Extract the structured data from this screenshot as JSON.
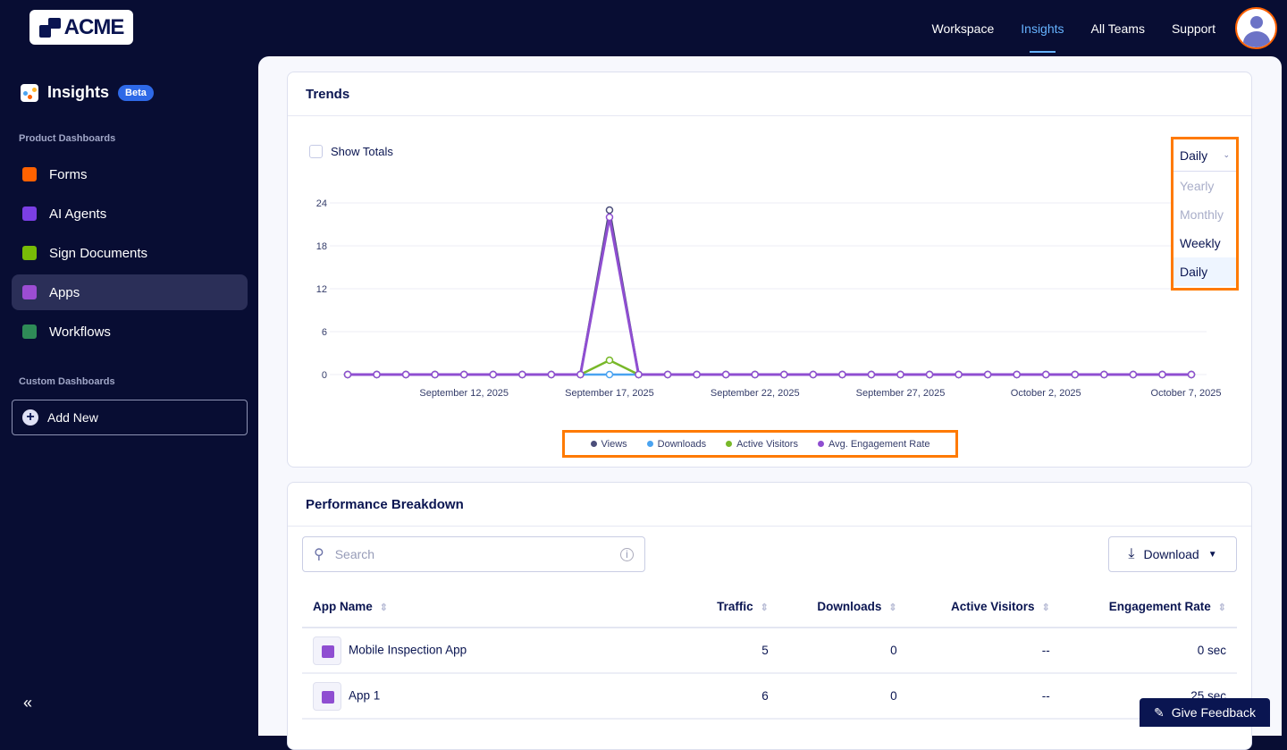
{
  "header": {
    "logo": "ACME",
    "nav": [
      "Workspace",
      "Insights",
      "All Teams",
      "Support"
    ],
    "active_nav": "Insights"
  },
  "sidebar": {
    "title": "Insights",
    "badge": "Beta",
    "product_section": "Product Dashboards",
    "items": [
      {
        "label": "Forms",
        "icon": "forms-icon",
        "color": "#ff6100"
      },
      {
        "label": "AI Agents",
        "icon": "ai-agents-icon",
        "color": "#7b3fe4"
      },
      {
        "label": "Sign Documents",
        "icon": "sign-documents-icon",
        "color": "#78bb07"
      },
      {
        "label": "Apps",
        "icon": "apps-icon",
        "color": "#9c4dd3"
      },
      {
        "label": "Workflows",
        "icon": "workflows-icon",
        "color": "#2e8b57"
      }
    ],
    "selected": "Apps",
    "custom_section": "Custom Dashboards",
    "add_new": "Add New",
    "collapse": "«"
  },
  "trends": {
    "title": "Trends",
    "show_totals": "Show Totals",
    "period": "Daily",
    "period_options": [
      "Yearly",
      "Monthly",
      "Weekly",
      "Daily"
    ]
  },
  "chart_data": {
    "type": "line",
    "x_start": "2025-09-08",
    "x_end": "2025-10-07",
    "x_tick_labels": [
      "September 12, 2025",
      "September 17, 2025",
      "September 22, 2025",
      "September 27, 2025",
      "October 2, 2025",
      "October 7, 2025"
    ],
    "y_ticks": [
      0,
      6,
      12,
      18,
      24
    ],
    "ylim": [
      0,
      24
    ],
    "grid": true,
    "legend": "bottom",
    "series": [
      {
        "name": "Views",
        "color": "#4b4e7a",
        "spike": {
          "date": "September 17, 2025",
          "value": 23
        }
      },
      {
        "name": "Downloads",
        "color": "#4aa3f0",
        "spike": {
          "date": "September 17, 2025",
          "value": 0
        }
      },
      {
        "name": "Active Visitors",
        "color": "#78b829",
        "spike": {
          "date": "September 17, 2025",
          "value": 2
        }
      },
      {
        "name": "Avg. Engagement Rate",
        "color": "#8f4ed1",
        "spike": {
          "date": "September 17, 2025",
          "value": 22
        }
      }
    ],
    "note_other_days_value": 0
  },
  "performance": {
    "title": "Performance Breakdown",
    "search_placeholder": "Search",
    "download": "Download",
    "columns": [
      "App Name",
      "Traffic",
      "Downloads",
      "Active Visitors",
      "Engagement Rate"
    ],
    "rows": [
      [
        "Mobile Inspection App",
        "5",
        "0",
        "--",
        "0 sec"
      ],
      [
        "App 1",
        "6",
        "0",
        "--",
        "25 sec"
      ]
    ]
  },
  "feedback": "Give Feedback"
}
